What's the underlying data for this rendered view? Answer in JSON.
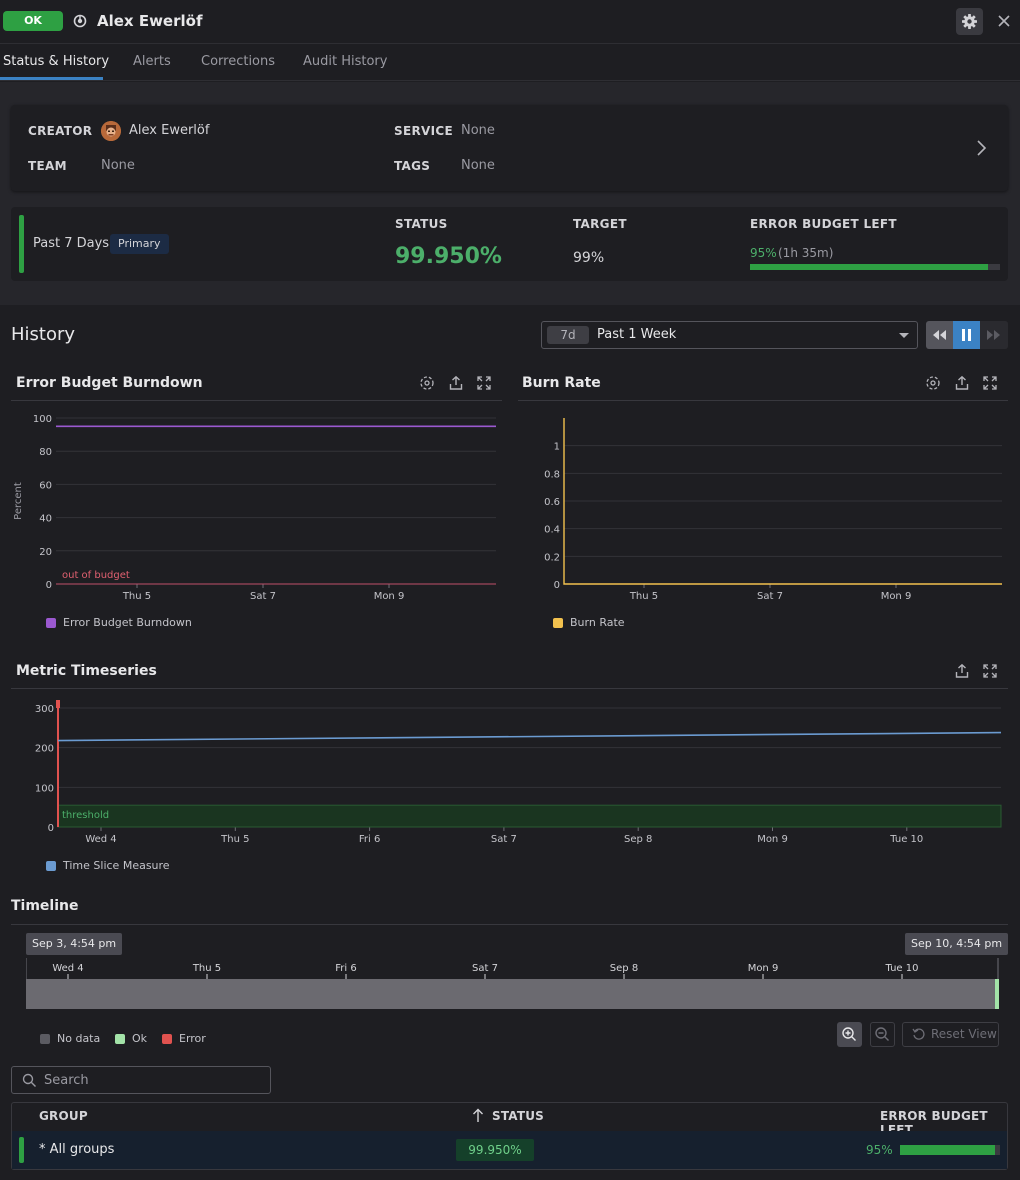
{
  "header": {
    "status_badge": "OK",
    "title": "Alex Ewerlöf"
  },
  "tabs": [
    {
      "label": "Status & History"
    },
    {
      "label": "Alerts"
    },
    {
      "label": "Corrections"
    },
    {
      "label": "Audit History"
    }
  ],
  "details": {
    "creator_label": "CREATOR",
    "creator_value": "Alex Ewerlöf",
    "team_label": "TEAM",
    "team_value": "None",
    "service_label": "SERVICE",
    "service_value": "None",
    "tags_label": "TAGS",
    "tags_value": "None"
  },
  "objective": {
    "period": "Past 7 Days",
    "badge": "Primary",
    "status_label": "STATUS",
    "status_value": "99.950%",
    "target_label": "TARGET",
    "target_value": "99%",
    "eb_label": "ERROR BUDGET LEFT",
    "eb_percent": "95%",
    "eb_time": "(1h 35m)",
    "eb_fraction": 0.95,
    "status_color": "#4caf6a"
  },
  "history": {
    "title": "History",
    "range_chip": "7d",
    "range_label": "Past 1 Week"
  },
  "chart_data": [
    {
      "type": "line",
      "title": "Error Budget Burndown",
      "ylabel": "Percent",
      "ylim": [
        0,
        100
      ],
      "yticks": [
        "100",
        "80",
        "60",
        "40",
        "20",
        "0"
      ],
      "xticks": [
        "Thu 5",
        "Sat 7",
        "Mon 9"
      ],
      "annotation": "out of budget",
      "series": [
        {
          "name": "Error Budget Burndown",
          "color": "#9b59d0",
          "values": [
            95,
            95
          ]
        }
      ]
    },
    {
      "type": "line",
      "title": "Burn Rate",
      "ylim": [
        0,
        1.2
      ],
      "yticks": [
        "1",
        "0.8",
        "0.6",
        "0.4",
        "0.2",
        "0"
      ],
      "xticks": [
        "Thu 5",
        "Sat 7",
        "Mon 9"
      ],
      "series": [
        {
          "name": "Burn Rate",
          "color": "#f2c14e",
          "values": [
            1.2,
            0,
            0
          ]
        }
      ]
    },
    {
      "type": "line",
      "title": "Metric Timeseries",
      "ylim": [
        0,
        300
      ],
      "yticks": [
        "300",
        "200",
        "100",
        "0"
      ],
      "xticks": [
        "Wed 4",
        "Thu 5",
        "Fri 6",
        "Sat 7",
        "Sep 8",
        "Mon 9",
        "Tue 10"
      ],
      "annotation": "threshold",
      "threshold": 55,
      "series": [
        {
          "name": "Time Slice Measure",
          "color": "#6b9bd1",
          "values": [
            218,
            238
          ]
        }
      ]
    }
  ],
  "timeline": {
    "title": "Timeline",
    "start": "Sep 3, 4:54 pm",
    "end": "Sep 10, 4:54 pm",
    "ticks": [
      "Wed 4",
      "Thu 5",
      "Fri 6",
      "Sat 7",
      "Sep 8",
      "Mon 9",
      "Tue 10"
    ],
    "legend": [
      {
        "label": "No data",
        "color": "#5b5b62"
      },
      {
        "label": "Ok",
        "color": "#a3e3a8"
      },
      {
        "label": "Error",
        "color": "#e0524f"
      }
    ],
    "reset_label": "Reset View"
  },
  "search": {
    "placeholder": "Search"
  },
  "table": {
    "col_group": "GROUP",
    "col_status": "STATUS",
    "col_eb": "ERROR BUDGET LEFT",
    "rows": [
      {
        "group": "* All groups",
        "status": "99.950%",
        "eb": "95%",
        "eb_fraction": 0.95
      }
    ]
  }
}
